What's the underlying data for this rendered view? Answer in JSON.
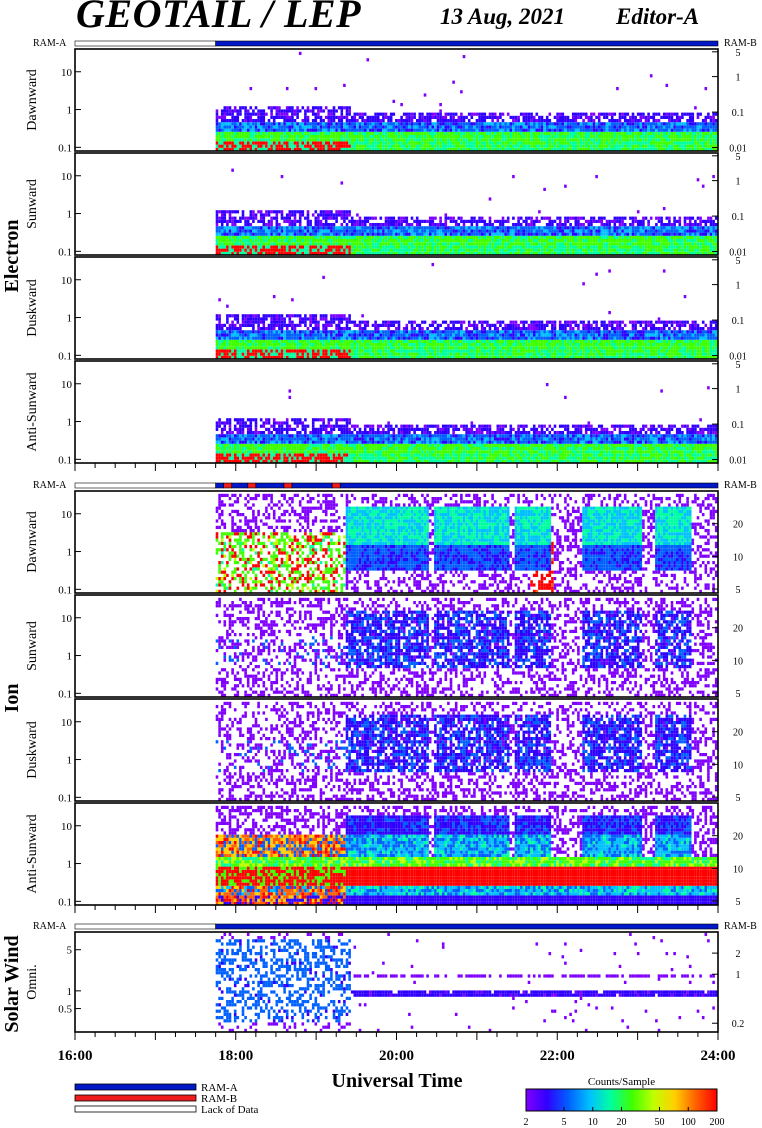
{
  "header": {
    "title": "GEOTAIL / LEP",
    "date": "13 Aug, 2021",
    "editor": "Editor-A"
  },
  "colors": {
    "ram_a": "#0018c8",
    "ram_b": "#ee1c1c",
    "lack": "#ffffff",
    "colorscale": [
      "#8000ff",
      "#3000ff",
      "#0060ff",
      "#00c0ff",
      "#00ffa0",
      "#40ff00",
      "#c0ff00",
      "#ffd000",
      "#ff6000",
      "#ff0000"
    ]
  },
  "chart_data": {
    "type": "heatmap",
    "xlabel": "Universal Time",
    "x_ticks": [
      "16:00",
      "18:00",
      "20:00",
      "22:00",
      "24:00"
    ],
    "xlim_hours": [
      16,
      24
    ],
    "data_start_hour": 17.75,
    "groups": [
      {
        "name": "Electron",
        "status_left": "RAM-A",
        "status_right": "RAM-B",
        "status_segments": [
          {
            "from": 16,
            "to": 17.75,
            "state": "lack"
          },
          {
            "from": 17.75,
            "to": 24,
            "state": "ram_a"
          }
        ],
        "left_ticks": [
          "10",
          "1",
          "0.1"
        ],
        "left_log_range": [
          0.08,
          40
        ],
        "right_ticks": [
          "5",
          "1",
          "0.1",
          "0.01"
        ],
        "right_log_range": [
          0.008,
          6
        ],
        "panels": [
          {
            "label": "Dawnward",
            "profile": "electron"
          },
          {
            "label": "Sunward",
            "profile": "electron"
          },
          {
            "label": "Duskward",
            "profile": "electron"
          },
          {
            "label": "Anti-Sunward",
            "profile": "electron"
          }
        ]
      },
      {
        "name": "Ion",
        "status_left": "RAM-A",
        "status_right": "RAM-B",
        "status_segments": [
          {
            "from": 16,
            "to": 17.75,
            "state": "lack"
          },
          {
            "from": 17.75,
            "to": 17.85,
            "state": "ram_a"
          },
          {
            "from": 17.85,
            "to": 17.95,
            "state": "ram_b"
          },
          {
            "from": 17.95,
            "to": 18.15,
            "state": "ram_a"
          },
          {
            "from": 18.15,
            "to": 18.25,
            "state": "ram_b"
          },
          {
            "from": 18.25,
            "to": 18.6,
            "state": "ram_a"
          },
          {
            "from": 18.6,
            "to": 18.7,
            "state": "ram_b"
          },
          {
            "from": 18.7,
            "to": 19.2,
            "state": "ram_a"
          },
          {
            "from": 19.2,
            "to": 19.3,
            "state": "ram_b"
          },
          {
            "from": 19.3,
            "to": 24,
            "state": "ram_a"
          }
        ],
        "left_ticks": [
          "10",
          "1",
          "0.1"
        ],
        "left_log_range": [
          0.08,
          40
        ],
        "right_ticks": [
          "20",
          "10",
          "5"
        ],
        "right_log_range": [
          4.6,
          40
        ],
        "panels": [
          {
            "label": "Dawnward",
            "profile": "ion_dawn"
          },
          {
            "label": "Sunward",
            "profile": "ion_sparse"
          },
          {
            "label": "Duskward",
            "profile": "ion_sparse"
          },
          {
            "label": "Anti-Sunward",
            "profile": "ion_anti"
          }
        ]
      },
      {
        "name": "Solar Wind",
        "status_left": "RAM-A",
        "status_right": "RAM-B",
        "status_segments": [
          {
            "from": 16,
            "to": 17.75,
            "state": "lack"
          },
          {
            "from": 17.75,
            "to": 24,
            "state": "ram_a"
          }
        ],
        "left_ticks": [
          "5",
          "1",
          "0.5"
        ],
        "left_log_range": [
          0.2,
          10
        ],
        "right_ticks": [
          "2",
          "1",
          "0.2"
        ],
        "right_log_range": [
          0.15,
          4
        ],
        "panels": [
          {
            "label": "Omni.",
            "profile": "solar_wind"
          }
        ]
      }
    ],
    "legend": {
      "items": [
        {
          "label": "RAM-A",
          "state": "ram_a"
        },
        {
          "label": "RAM-B",
          "state": "ram_b"
        },
        {
          "label": "Lack of Data",
          "state": "lack"
        }
      ]
    },
    "colorbar": {
      "title": "Counts/Sample",
      "ticks": [
        "2",
        "5",
        "10",
        "20",
        "50",
        "100",
        "200"
      ],
      "range": [
        2,
        200
      ]
    }
  }
}
